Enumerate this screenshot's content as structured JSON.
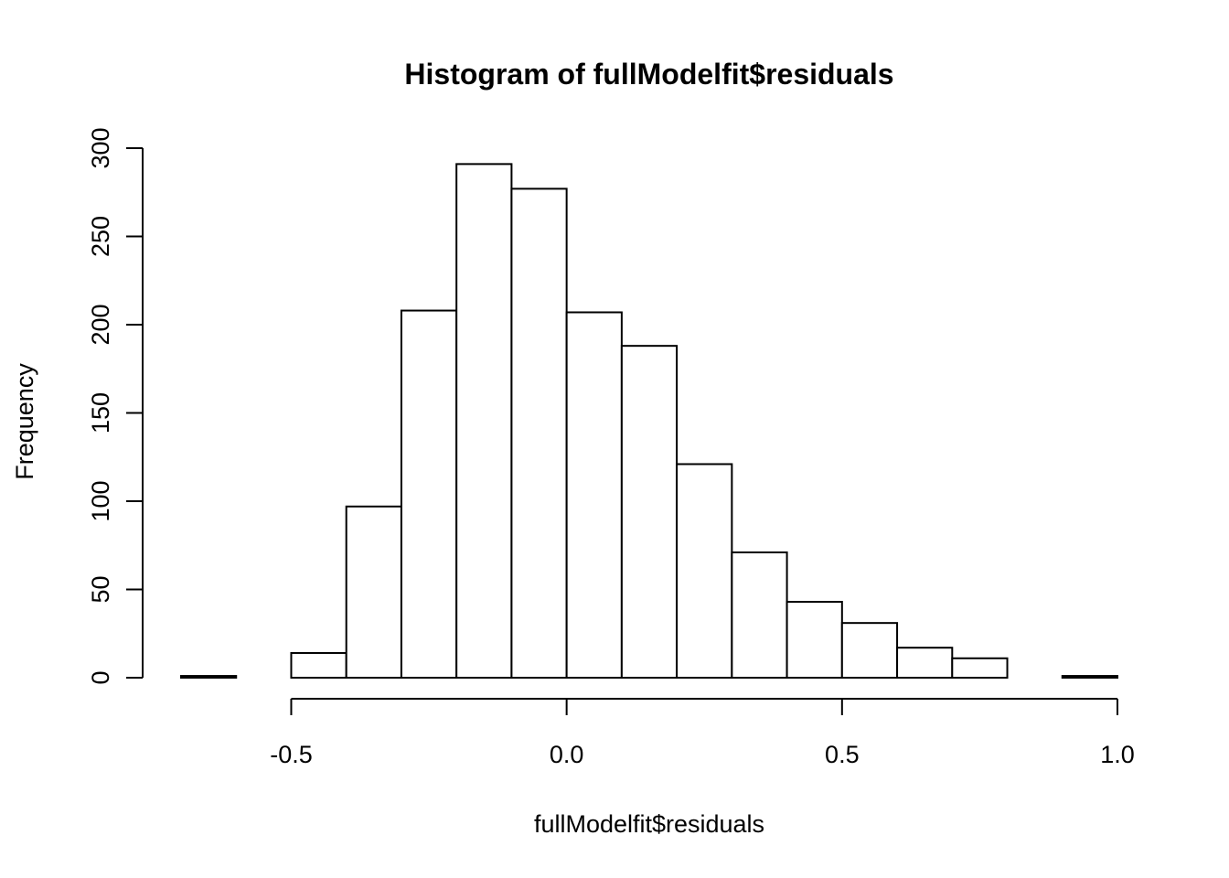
{
  "chart_data": {
    "type": "bar",
    "title": "Histogram of fullModelfit$residuals",
    "xlabel": "fullModelfit$residuals",
    "ylabel": "Frequency",
    "bins": [
      {
        "start": -0.7,
        "end": -0.6,
        "count": 1
      },
      {
        "start": -0.6,
        "end": -0.5,
        "count": 0
      },
      {
        "start": -0.5,
        "end": -0.4,
        "count": 14
      },
      {
        "start": -0.4,
        "end": -0.3,
        "count": 97
      },
      {
        "start": -0.3,
        "end": -0.2,
        "count": 208
      },
      {
        "start": -0.2,
        "end": -0.1,
        "count": 291
      },
      {
        "start": -0.1,
        "end": 0.0,
        "count": 277
      },
      {
        "start": 0.0,
        "end": 0.1,
        "count": 207
      },
      {
        "start": 0.1,
        "end": 0.2,
        "count": 188
      },
      {
        "start": 0.2,
        "end": 0.3,
        "count": 121
      },
      {
        "start": 0.3,
        "end": 0.4,
        "count": 71
      },
      {
        "start": 0.4,
        "end": 0.5,
        "count": 43
      },
      {
        "start": 0.5,
        "end": 0.6,
        "count": 31
      },
      {
        "start": 0.6,
        "end": 0.7,
        "count": 17
      },
      {
        "start": 0.7,
        "end": 0.8,
        "count": 11
      },
      {
        "start": 0.8,
        "end": 0.9,
        "count": 0
      },
      {
        "start": 0.9,
        "end": 1.0,
        "count": 1
      }
    ],
    "x_ticks": [
      {
        "value": -0.5,
        "label": "-0.5"
      },
      {
        "value": 0.0,
        "label": "0.0"
      },
      {
        "value": 0.5,
        "label": "0.5"
      },
      {
        "value": 1.0,
        "label": "1.0"
      }
    ],
    "y_ticks": [
      {
        "value": 0,
        "label": "0"
      },
      {
        "value": 50,
        "label": "50"
      },
      {
        "value": 100,
        "label": "100"
      },
      {
        "value": 150,
        "label": "150"
      },
      {
        "value": 200,
        "label": "200"
      },
      {
        "value": 250,
        "label": "250"
      },
      {
        "value": 300,
        "label": "300"
      }
    ],
    "xlim": [
      -0.7,
      1.0
    ],
    "ylim": [
      0,
      300
    ],
    "grid": false,
    "legend": "none",
    "colors": {
      "bar_fill": "#ffffff",
      "bar_stroke": "#000000",
      "axis": "#000000",
      "text": "#000000"
    }
  }
}
